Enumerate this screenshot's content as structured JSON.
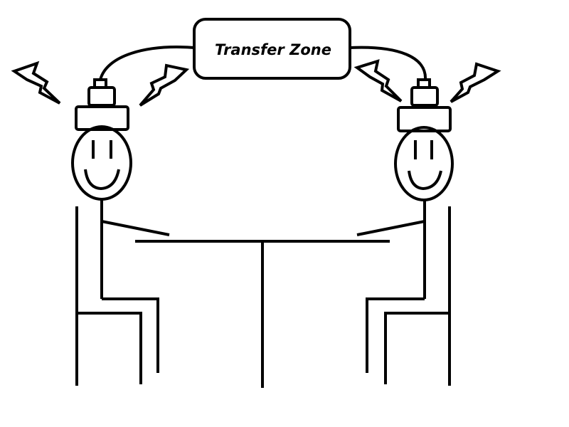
{
  "diagram": {
    "transfer_zone": {
      "label": "Transfer Zone"
    },
    "colors": {
      "ink": "#000000",
      "background": "#ffffff"
    },
    "icons": [
      "lightning-bolt-icon",
      "electrode-cap-icon",
      "smiley-face-icon"
    ]
  }
}
